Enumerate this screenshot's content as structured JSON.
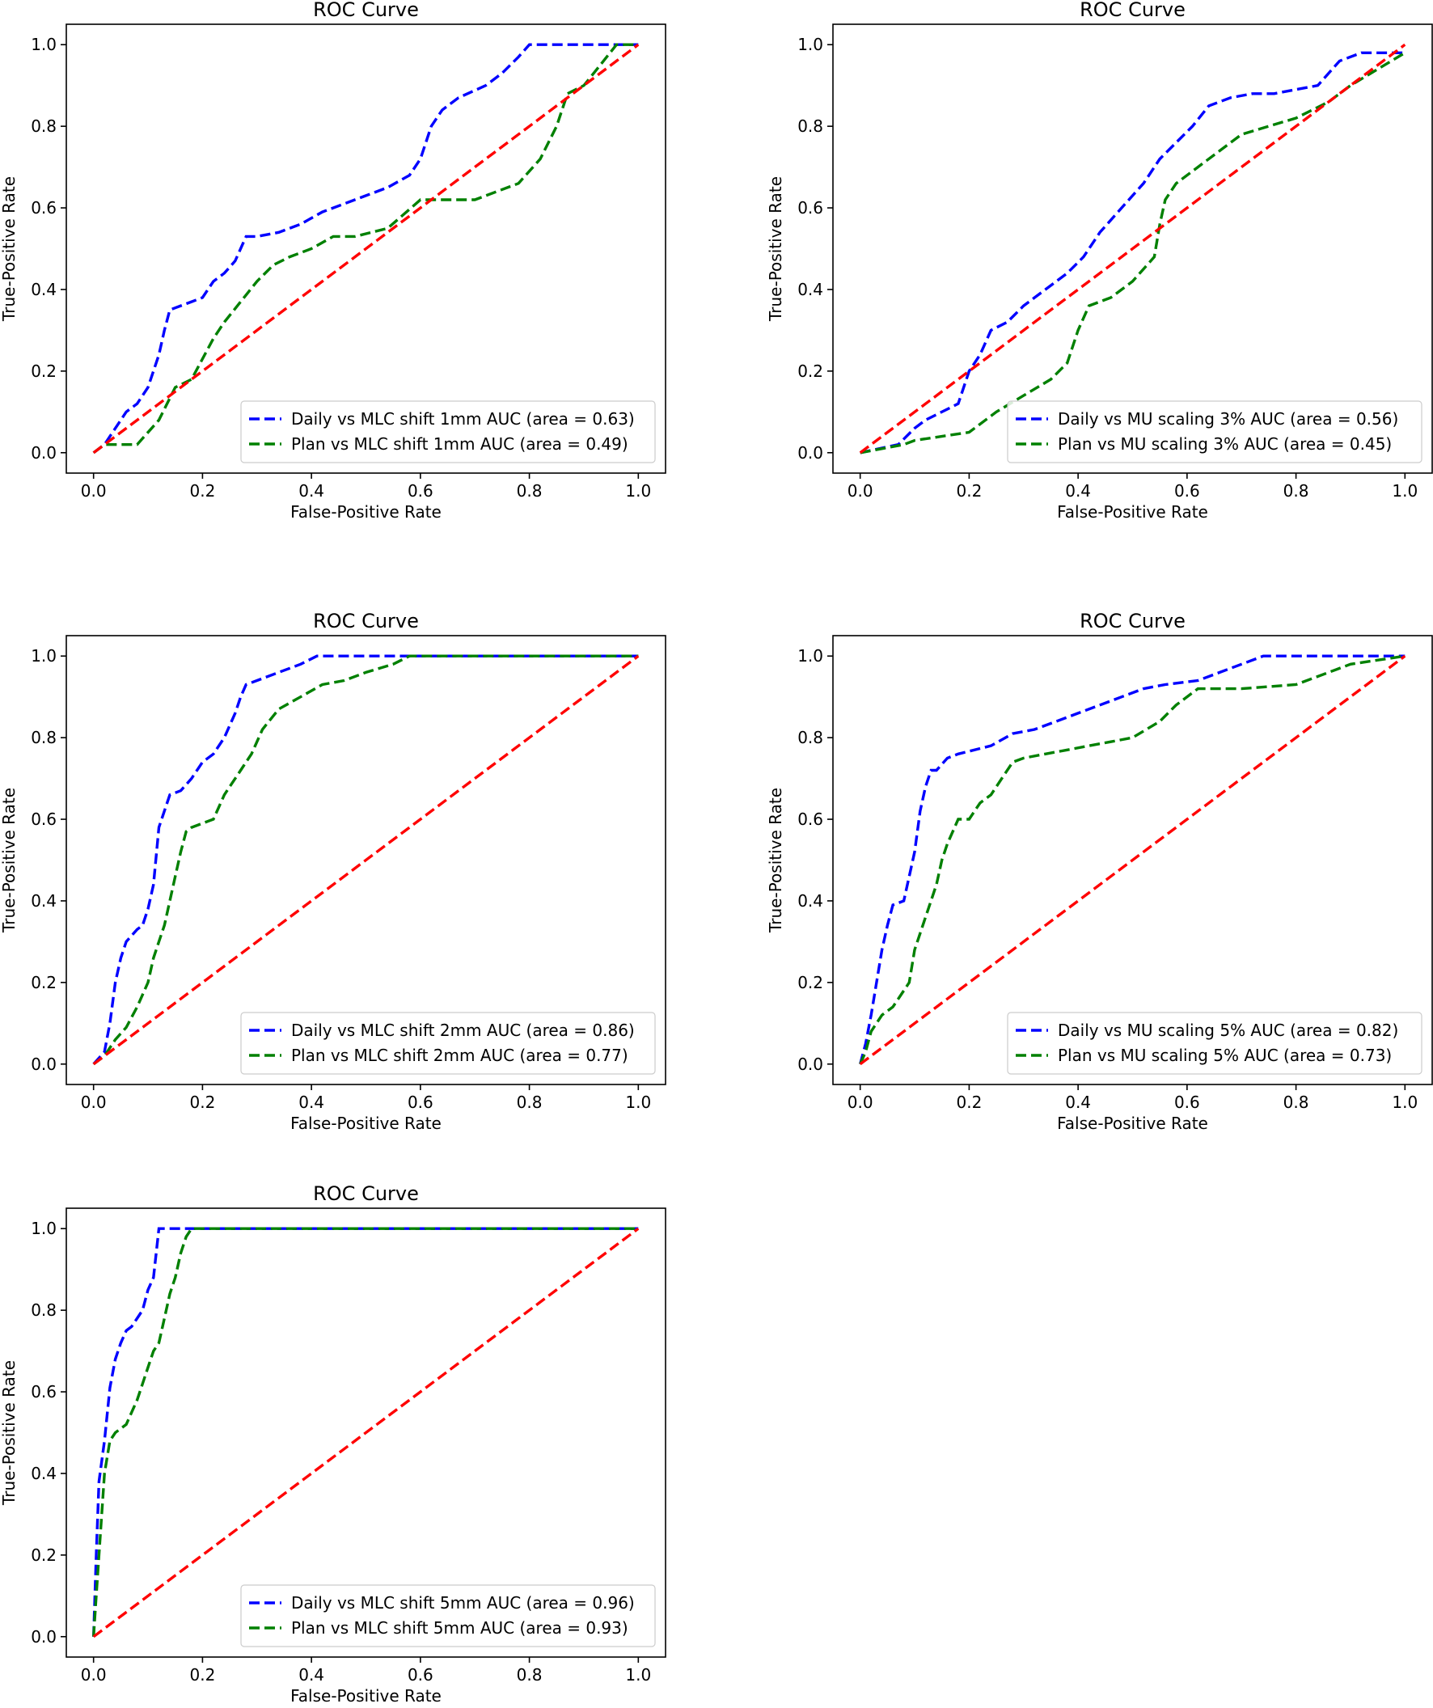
{
  "chart_data": [
    {
      "type": "line",
      "title": "ROC Curve",
      "xlabel": "False-Positive Rate",
      "ylabel": "True-Positive Rate",
      "xlim": [
        0,
        1
      ],
      "ylim": [
        0,
        1
      ],
      "xticks": [
        "0.0",
        "0.2",
        "0.4",
        "0.6",
        "0.8",
        "1.0"
      ],
      "yticks": [
        "0.0",
        "0.2",
        "0.4",
        "0.6",
        "0.8",
        "1.0"
      ],
      "grid": false,
      "legend_position": "lower-right",
      "series": [
        {
          "name": "Daily vs MLC shift 1mm AUC (area = 0.63)",
          "color": "#0000ff",
          "x": [
            0,
            0.02,
            0.05,
            0.06,
            0.08,
            0.1,
            0.12,
            0.13,
            0.14,
            0.16,
            0.18,
            0.2,
            0.22,
            0.24,
            0.26,
            0.28,
            0.3,
            0.34,
            0.38,
            0.42,
            0.46,
            0.5,
            0.54,
            0.58,
            0.6,
            0.62,
            0.64,
            0.67,
            0.72,
            0.75,
            0.78,
            0.8,
            0.9,
            1.0
          ],
          "y": [
            0,
            0.02,
            0.08,
            0.1,
            0.12,
            0.16,
            0.24,
            0.3,
            0.35,
            0.36,
            0.37,
            0.38,
            0.42,
            0.44,
            0.47,
            0.53,
            0.53,
            0.54,
            0.56,
            0.59,
            0.61,
            0.63,
            0.65,
            0.68,
            0.72,
            0.8,
            0.84,
            0.87,
            0.9,
            0.93,
            0.97,
            1.0,
            1.0,
            1.0
          ]
        },
        {
          "name": "Plan vs MLC shift 1mm AUC (area = 0.49)",
          "color": "#008000",
          "x": [
            0,
            0.02,
            0.08,
            0.12,
            0.15,
            0.18,
            0.22,
            0.24,
            0.27,
            0.3,
            0.33,
            0.36,
            0.4,
            0.44,
            0.48,
            0.54,
            0.6,
            0.66,
            0.7,
            0.74,
            0.78,
            0.82,
            0.85,
            0.87,
            0.9,
            0.93,
            0.96,
            1.0
          ],
          "y": [
            0,
            0.02,
            0.02,
            0.08,
            0.16,
            0.18,
            0.28,
            0.32,
            0.37,
            0.42,
            0.46,
            0.48,
            0.5,
            0.53,
            0.53,
            0.55,
            0.62,
            0.62,
            0.62,
            0.64,
            0.66,
            0.72,
            0.8,
            0.88,
            0.9,
            0.95,
            1.0,
            1.0
          ]
        },
        {
          "name": "Reference",
          "color": "#ff0000",
          "legend": false,
          "x": [
            0,
            1
          ],
          "y": [
            0,
            1
          ]
        }
      ]
    },
    {
      "type": "line",
      "title": "ROC Curve",
      "xlabel": "False-Positive Rate",
      "ylabel": "True-Positive Rate",
      "xlim": [
        0,
        1
      ],
      "ylim": [
        0,
        1
      ],
      "xticks": [
        "0.0",
        "0.2",
        "0.4",
        "0.6",
        "0.8",
        "1.0"
      ],
      "yticks": [
        "0.0",
        "0.2",
        "0.4",
        "0.6",
        "0.8",
        "1.0"
      ],
      "grid": false,
      "legend_position": "lower-right",
      "series": [
        {
          "name": "Daily vs MU scaling 3% AUC (area = 0.56)",
          "color": "#0000ff",
          "x": [
            0,
            0.07,
            0.1,
            0.12,
            0.18,
            0.2,
            0.22,
            0.24,
            0.27,
            0.3,
            0.34,
            0.38,
            0.41,
            0.44,
            0.48,
            0.52,
            0.55,
            0.58,
            0.61,
            0.64,
            0.68,
            0.72,
            0.76,
            0.84,
            0.86,
            0.88,
            0.92,
            1.0
          ],
          "y": [
            0,
            0.02,
            0.06,
            0.08,
            0.12,
            0.2,
            0.24,
            0.3,
            0.32,
            0.36,
            0.4,
            0.44,
            0.48,
            0.54,
            0.6,
            0.66,
            0.72,
            0.76,
            0.8,
            0.85,
            0.87,
            0.88,
            0.88,
            0.9,
            0.93,
            0.96,
            0.98,
            0.98
          ]
        },
        {
          "name": "Plan vs MU scaling 3% AUC (area = 0.45)",
          "color": "#008000",
          "x": [
            0,
            0.08,
            0.1,
            0.2,
            0.25,
            0.3,
            0.35,
            0.38,
            0.4,
            0.42,
            0.46,
            0.5,
            0.54,
            0.55,
            0.56,
            0.58,
            0.62,
            0.66,
            0.7,
            0.75,
            0.8,
            0.86,
            0.9,
            1.0
          ],
          "y": [
            0,
            0.02,
            0.03,
            0.05,
            0.1,
            0.14,
            0.18,
            0.22,
            0.3,
            0.36,
            0.38,
            0.42,
            0.48,
            0.56,
            0.62,
            0.66,
            0.7,
            0.74,
            0.78,
            0.8,
            0.82,
            0.86,
            0.9,
            0.98
          ]
        },
        {
          "name": "Reference",
          "color": "#ff0000",
          "legend": false,
          "x": [
            0,
            1
          ],
          "y": [
            0,
            1
          ]
        }
      ]
    },
    {
      "type": "line",
      "title": "ROC Curve",
      "xlabel": "False-Positive Rate",
      "ylabel": "True-Positive Rate",
      "xlim": [
        0,
        1
      ],
      "ylim": [
        0,
        1
      ],
      "xticks": [
        "0.0",
        "0.2",
        "0.4",
        "0.6",
        "0.8",
        "1.0"
      ],
      "yticks": [
        "0.0",
        "0.2",
        "0.4",
        "0.6",
        "0.8",
        "1.0"
      ],
      "grid": false,
      "legend_position": "lower-right",
      "series": [
        {
          "name": "Daily vs MLC shift 2mm AUC (area = 0.86)",
          "color": "#0000ff",
          "x": [
            0,
            0.02,
            0.03,
            0.04,
            0.05,
            0.06,
            0.08,
            0.09,
            0.1,
            0.11,
            0.12,
            0.14,
            0.16,
            0.18,
            0.2,
            0.22,
            0.24,
            0.26,
            0.27,
            0.28,
            0.3,
            0.34,
            0.38,
            0.41,
            0.44,
            0.5,
            0.6,
            1.0
          ],
          "y": [
            0,
            0.03,
            0.1,
            0.2,
            0.26,
            0.3,
            0.33,
            0.34,
            0.38,
            0.44,
            0.58,
            0.66,
            0.67,
            0.7,
            0.74,
            0.76,
            0.8,
            0.86,
            0.9,
            0.93,
            0.94,
            0.96,
            0.98,
            1.0,
            1.0,
            1.0,
            1.0,
            1.0
          ]
        },
        {
          "name": "Plan vs MLC shift 2mm AUC (area = 0.77)",
          "color": "#008000",
          "x": [
            0,
            0.02,
            0.04,
            0.06,
            0.08,
            0.1,
            0.11,
            0.12,
            0.13,
            0.14,
            0.15,
            0.16,
            0.17,
            0.18,
            0.22,
            0.24,
            0.27,
            0.29,
            0.31,
            0.34,
            0.38,
            0.42,
            0.46,
            0.5,
            0.55,
            0.58,
            0.6,
            0.7,
            1.0
          ],
          "y": [
            0,
            0.02,
            0.06,
            0.09,
            0.14,
            0.2,
            0.26,
            0.3,
            0.34,
            0.4,
            0.46,
            0.52,
            0.57,
            0.58,
            0.6,
            0.66,
            0.72,
            0.76,
            0.82,
            0.87,
            0.9,
            0.93,
            0.94,
            0.96,
            0.98,
            1.0,
            1.0,
            1.0,
            1.0
          ]
        },
        {
          "name": "Reference",
          "color": "#ff0000",
          "legend": false,
          "x": [
            0,
            1
          ],
          "y": [
            0,
            1
          ]
        }
      ]
    },
    {
      "type": "line",
      "title": "ROC Curve",
      "xlabel": "False-Positive Rate",
      "ylabel": "True-Positive Rate",
      "xlim": [
        0,
        1
      ],
      "ylim": [
        0,
        1
      ],
      "xticks": [
        "0.0",
        "0.2",
        "0.4",
        "0.6",
        "0.8",
        "1.0"
      ],
      "yticks": [
        "0.0",
        "0.2",
        "0.4",
        "0.6",
        "0.8",
        "1.0"
      ],
      "grid": false,
      "legend_position": "lower-right",
      "series": [
        {
          "name": "Daily vs MU scaling 5% AUC (area = 0.82)",
          "color": "#0000ff",
          "x": [
            0,
            0.01,
            0.02,
            0.03,
            0.04,
            0.05,
            0.06,
            0.08,
            0.09,
            0.1,
            0.11,
            0.12,
            0.13,
            0.14,
            0.16,
            0.18,
            0.24,
            0.28,
            0.32,
            0.36,
            0.4,
            0.44,
            0.48,
            0.52,
            0.56,
            0.62,
            0.66,
            0.7,
            0.74,
            0.8,
            1.0
          ],
          "y": [
            0,
            0.05,
            0.12,
            0.2,
            0.28,
            0.34,
            0.39,
            0.4,
            0.46,
            0.52,
            0.62,
            0.68,
            0.72,
            0.72,
            0.75,
            0.76,
            0.78,
            0.81,
            0.82,
            0.84,
            0.86,
            0.88,
            0.9,
            0.92,
            0.93,
            0.94,
            0.96,
            0.98,
            1.0,
            1.0,
            1.0
          ]
        },
        {
          "name": "Plan vs MU scaling 5% AUC (area = 0.73)",
          "color": "#008000",
          "x": [
            0,
            0.01,
            0.02,
            0.04,
            0.06,
            0.09,
            0.1,
            0.12,
            0.14,
            0.15,
            0.16,
            0.18,
            0.2,
            0.22,
            0.24,
            0.26,
            0.28,
            0.3,
            0.34,
            0.38,
            0.42,
            0.46,
            0.5,
            0.55,
            0.58,
            0.62,
            0.7,
            0.8,
            0.86,
            0.9,
            1.0
          ],
          "y": [
            0,
            0.03,
            0.08,
            0.12,
            0.14,
            0.2,
            0.28,
            0.36,
            0.44,
            0.5,
            0.54,
            0.6,
            0.6,
            0.64,
            0.66,
            0.7,
            0.74,
            0.75,
            0.76,
            0.77,
            0.78,
            0.79,
            0.8,
            0.84,
            0.88,
            0.92,
            0.92,
            0.93,
            0.96,
            0.98,
            1.0
          ]
        },
        {
          "name": "Reference",
          "color": "#ff0000",
          "legend": false,
          "x": [
            0,
            1
          ],
          "y": [
            0,
            1
          ]
        }
      ]
    },
    {
      "type": "line",
      "title": "ROC Curve",
      "xlabel": "False-Positive Rate",
      "ylabel": "True-Positive Rate",
      "xlim": [
        0,
        1
      ],
      "ylim": [
        0,
        1
      ],
      "xticks": [
        "0.0",
        "0.2",
        "0.4",
        "0.6",
        "0.8",
        "1.0"
      ],
      "yticks": [
        "0.0",
        "0.2",
        "0.4",
        "0.6",
        "0.8",
        "1.0"
      ],
      "grid": false,
      "legend_position": "lower-right",
      "series": [
        {
          "name": "Daily vs MLC shift 5mm AUC (area = 0.96)",
          "color": "#0000ff",
          "x": [
            0,
            0.005,
            0.01,
            0.02,
            0.03,
            0.04,
            0.05,
            0.06,
            0.07,
            0.09,
            0.1,
            0.11,
            0.12,
            0.2,
            1.0
          ],
          "y": [
            0,
            0.2,
            0.38,
            0.48,
            0.61,
            0.68,
            0.72,
            0.75,
            0.76,
            0.8,
            0.85,
            0.88,
            1.0,
            1.0,
            1.0
          ]
        },
        {
          "name": "Plan vs MLC shift 5mm AUC (area = 0.93)",
          "color": "#008000",
          "x": [
            0,
            0.005,
            0.01,
            0.02,
            0.03,
            0.04,
            0.06,
            0.07,
            0.08,
            0.09,
            0.1,
            0.11,
            0.12,
            0.13,
            0.14,
            0.15,
            0.16,
            0.17,
            0.18,
            1.0
          ],
          "y": [
            0,
            0.1,
            0.2,
            0.4,
            0.48,
            0.5,
            0.52,
            0.55,
            0.58,
            0.62,
            0.66,
            0.7,
            0.72,
            0.78,
            0.84,
            0.88,
            0.94,
            0.98,
            1.0,
            1.0
          ]
        },
        {
          "name": "Reference",
          "color": "#ff0000",
          "legend": false,
          "x": [
            0,
            1
          ],
          "y": [
            0,
            1
          ]
        }
      ]
    }
  ]
}
